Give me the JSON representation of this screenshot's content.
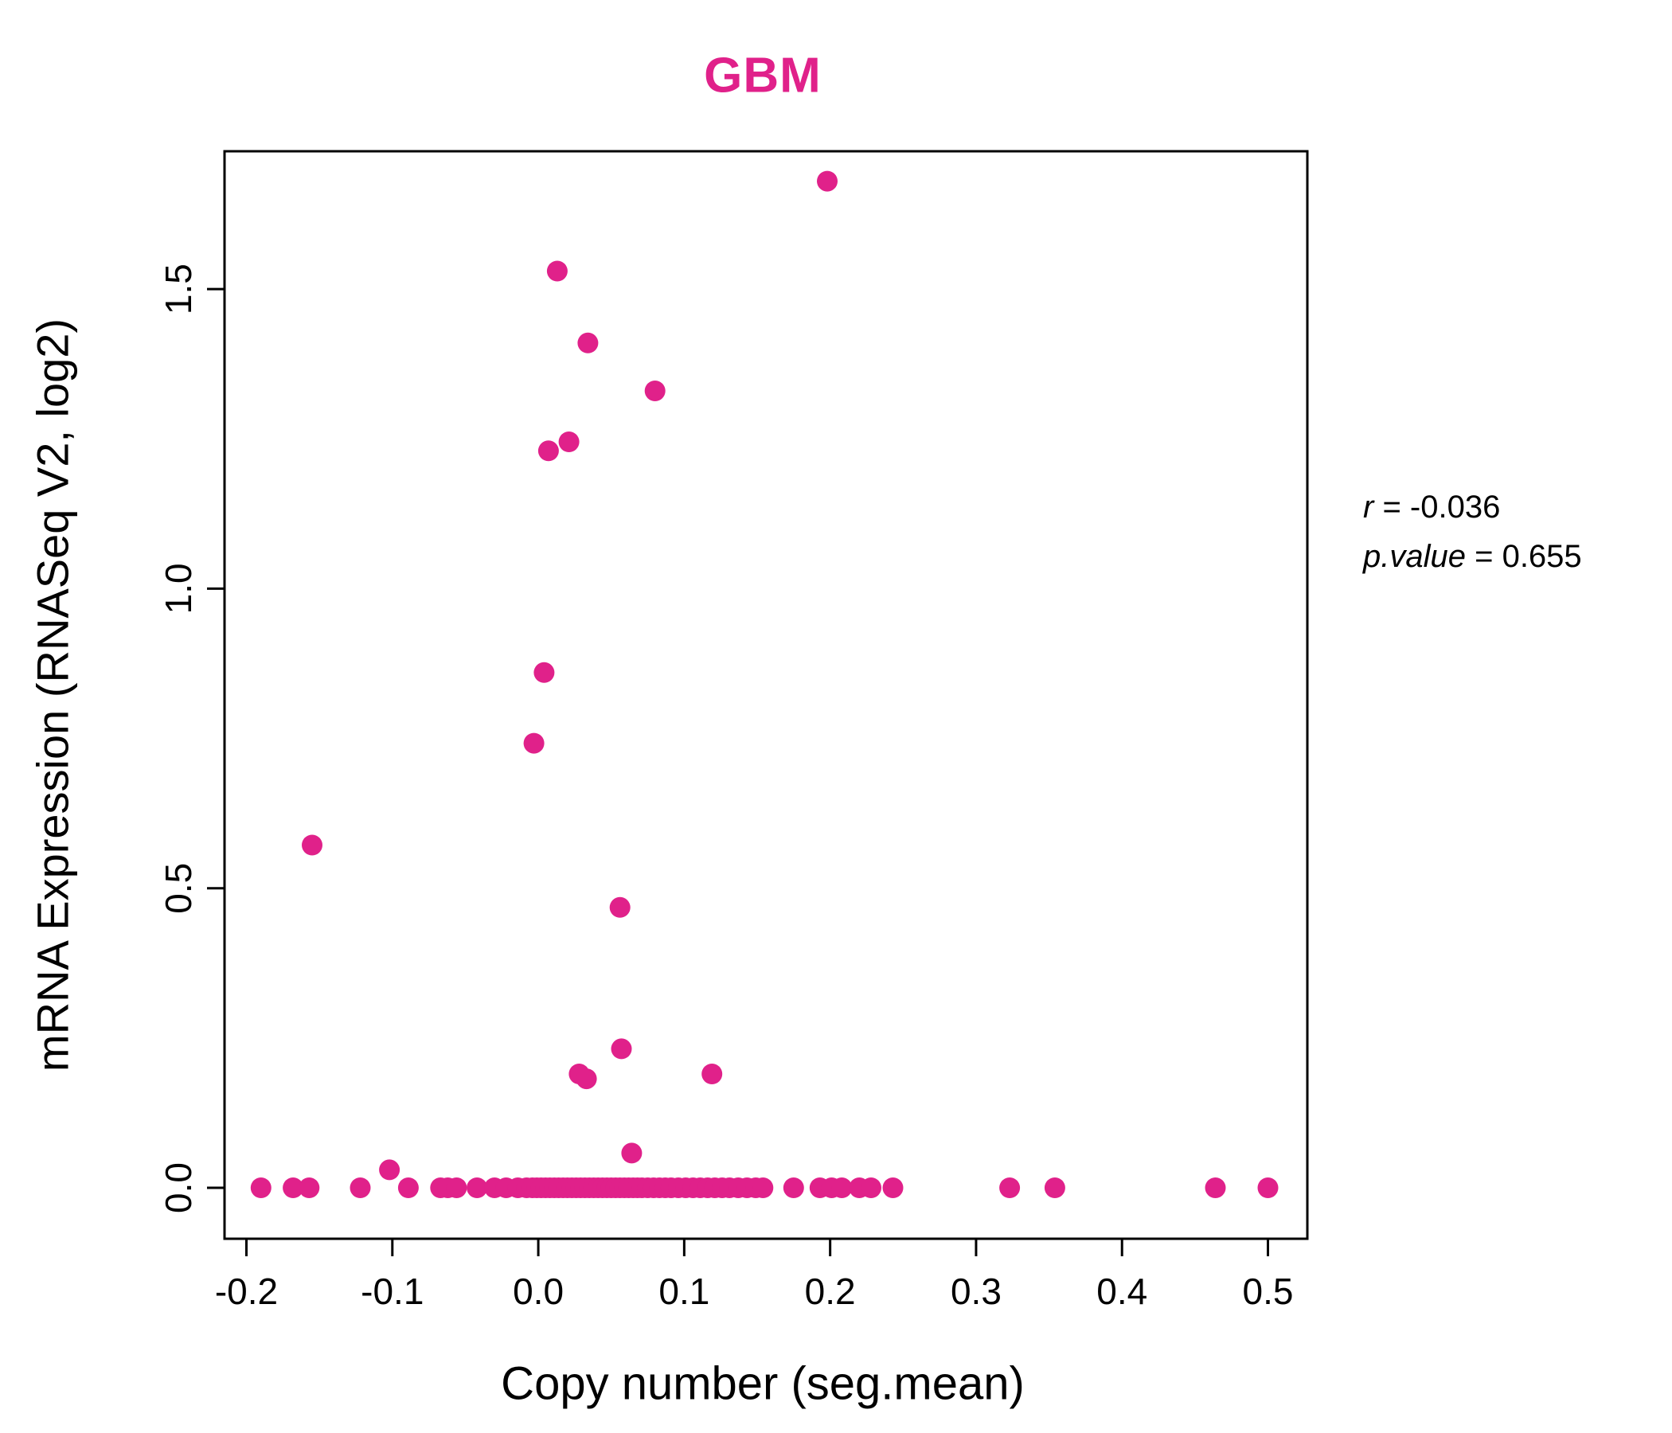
{
  "colors": {
    "accent": "#E0218A",
    "text": "#000000",
    "background": "#FFFFFF"
  },
  "annotation": {
    "r_label": "r",
    "r_value": " = -0.036",
    "p_label": "p.value",
    "p_value": " = 0.655"
  },
  "chart_data": {
    "type": "scatter",
    "title": "GBM",
    "title_color": "#E0218A",
    "xlabel": "Copy number (seg.mean)",
    "ylabel": "mRNA Expression (RNASeq V2, log2)",
    "xlim": [
      -0.215,
      0.527
    ],
    "ylim": [
      -0.085,
      1.73
    ],
    "xticks": [
      -0.2,
      -0.1,
      0.0,
      0.1,
      0.2,
      0.3,
      0.4,
      0.5
    ],
    "yticks": [
      0.0,
      0.5,
      1.0,
      1.5
    ],
    "grid": false,
    "legend": "none",
    "point_color": "#E0218A",
    "stats": {
      "r": -0.036,
      "p_value": 0.655
    },
    "points": [
      [
        0.198,
        1.68
      ],
      [
        0.013,
        1.53
      ],
      [
        0.034,
        1.41
      ],
      [
        0.08,
        1.33
      ],
      [
        0.021,
        1.245
      ],
      [
        0.007,
        1.23
      ],
      [
        0.004,
        0.86
      ],
      [
        -0.003,
        0.742
      ],
      [
        -0.155,
        0.572
      ],
      [
        0.056,
        0.468
      ],
      [
        0.057,
        0.232
      ],
      [
        0.119,
        0.19
      ],
      [
        0.028,
        0.19
      ],
      [
        0.033,
        0.182
      ],
      [
        0.064,
        0.058
      ],
      [
        -0.102,
        0.03
      ],
      [
        -0.19,
        0.0
      ],
      [
        -0.168,
        0.0
      ],
      [
        -0.157,
        0.0
      ],
      [
        -0.122,
        0.0
      ],
      [
        -0.089,
        0.0
      ],
      [
        -0.067,
        0.0
      ],
      [
        -0.062,
        0.0
      ],
      [
        -0.056,
        0.0
      ],
      [
        -0.042,
        0.0
      ],
      [
        -0.03,
        0.0
      ],
      [
        -0.022,
        0.0
      ],
      [
        -0.014,
        0.0
      ],
      [
        -0.008,
        0.0
      ],
      [
        -0.004,
        0.0
      ],
      [
        -0.001,
        0.0
      ],
      [
        0.002,
        0.0
      ],
      [
        0.005,
        0.0
      ],
      [
        0.008,
        0.0
      ],
      [
        0.011,
        0.0
      ],
      [
        0.014,
        0.0
      ],
      [
        0.017,
        0.0
      ],
      [
        0.02,
        0.0
      ],
      [
        0.023,
        0.0
      ],
      [
        0.026,
        0.0
      ],
      [
        0.029,
        0.0
      ],
      [
        0.032,
        0.0
      ],
      [
        0.035,
        0.0
      ],
      [
        0.038,
        0.0
      ],
      [
        0.041,
        0.0
      ],
      [
        0.044,
        0.0
      ],
      [
        0.047,
        0.0
      ],
      [
        0.05,
        0.0
      ],
      [
        0.053,
        0.0
      ],
      [
        0.056,
        0.0
      ],
      [
        0.059,
        0.0
      ],
      [
        0.062,
        0.0
      ],
      [
        0.065,
        0.0
      ],
      [
        0.068,
        0.0
      ],
      [
        0.071,
        0.0
      ],
      [
        0.075,
        0.0
      ],
      [
        0.079,
        0.0
      ],
      [
        0.083,
        0.0
      ],
      [
        0.087,
        0.0
      ],
      [
        0.091,
        0.0
      ],
      [
        0.096,
        0.0
      ],
      [
        0.101,
        0.0
      ],
      [
        0.106,
        0.0
      ],
      [
        0.111,
        0.0
      ],
      [
        0.116,
        0.0
      ],
      [
        0.121,
        0.0
      ],
      [
        0.126,
        0.0
      ],
      [
        0.131,
        0.0
      ],
      [
        0.137,
        0.0
      ],
      [
        0.143,
        0.0
      ],
      [
        0.149,
        0.0
      ],
      [
        0.154,
        0.0
      ],
      [
        0.175,
        0.0
      ],
      [
        0.193,
        0.0
      ],
      [
        0.201,
        0.0
      ],
      [
        0.208,
        0.0
      ],
      [
        0.22,
        0.0
      ],
      [
        0.228,
        0.0
      ],
      [
        0.243,
        0.0
      ],
      [
        0.323,
        0.0
      ],
      [
        0.354,
        0.0
      ],
      [
        0.464,
        0.0
      ],
      [
        0.5,
        0.0
      ]
    ]
  }
}
